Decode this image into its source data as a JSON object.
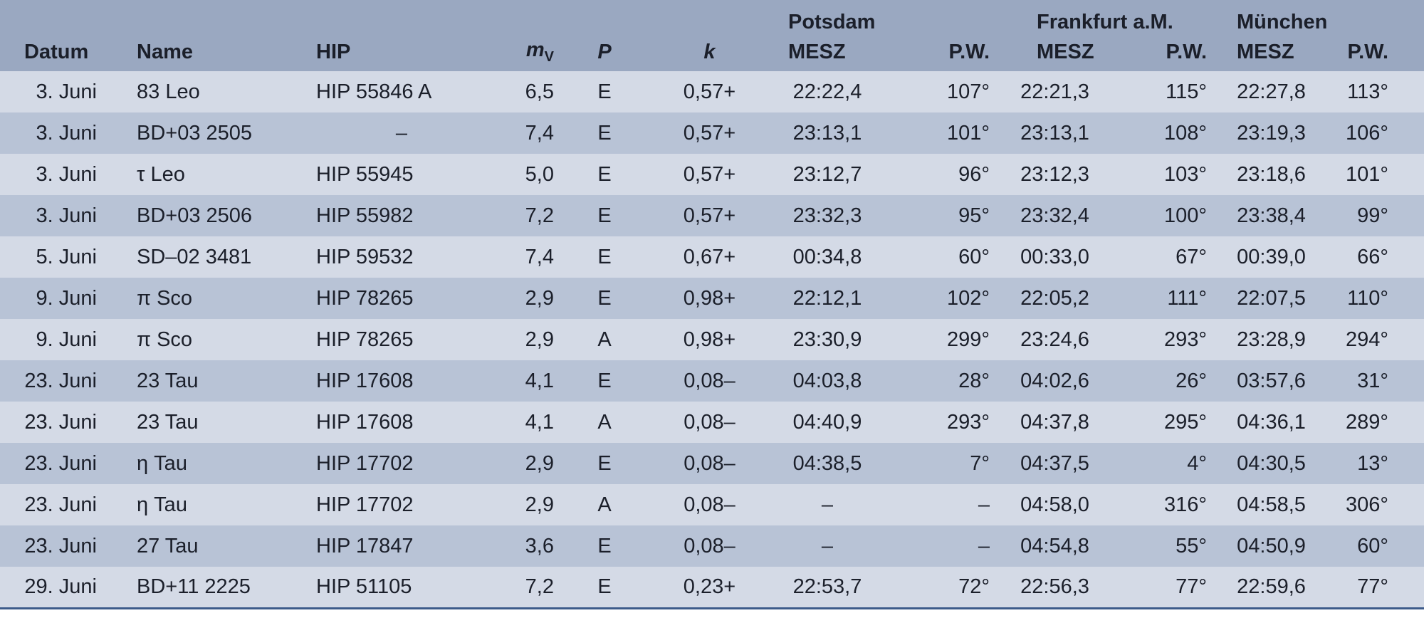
{
  "columns": {
    "datum": "Datum",
    "name": "Name",
    "hip": "HIP",
    "mv_main": "m",
    "mv_sub": "V",
    "p": "P",
    "k": "k",
    "mesz": "MESZ",
    "pw": "P.W."
  },
  "cities": [
    "Potsdam",
    "Frankfurt a.M.",
    "München"
  ],
  "rows": [
    [
      "3. Juni",
      "83 Leo",
      "HIP 55846 A",
      "6,5",
      "E",
      "0,57+",
      "22:22,4",
      "107°",
      "22:21,3",
      "115°",
      "22:27,8",
      "113°"
    ],
    [
      "3. Juni",
      "BD+03 2505",
      "–",
      "7,4",
      "E",
      "0,57+",
      "23:13,1",
      "101°",
      "23:13,1",
      "108°",
      "23:19,3",
      "106°"
    ],
    [
      "3. Juni",
      "τ Leo",
      "HIP 55945",
      "5,0",
      "E",
      "0,57+",
      "23:12,7",
      "96°",
      "23:12,3",
      "103°",
      "23:18,6",
      "101°"
    ],
    [
      "3. Juni",
      "BD+03 2506",
      "HIP 55982",
      "7,2",
      "E",
      "0,57+",
      "23:32,3",
      "95°",
      "23:32,4",
      "100°",
      "23:38,4",
      "99°"
    ],
    [
      "5. Juni",
      "SD–02 3481",
      "HIP 59532",
      "7,4",
      "E",
      "0,67+",
      "00:34,8",
      "60°",
      "00:33,0",
      "67°",
      "00:39,0",
      "66°"
    ],
    [
      "9. Juni",
      "π Sco",
      "HIP 78265",
      "2,9",
      "E",
      "0,98+",
      "22:12,1",
      "102°",
      "22:05,2",
      "111°",
      "22:07,5",
      "110°"
    ],
    [
      "9. Juni",
      "π Sco",
      "HIP 78265",
      "2,9",
      "A",
      "0,98+",
      "23:30,9",
      "299°",
      "23:24,6",
      "293°",
      "23:28,9",
      "294°"
    ],
    [
      "23. Juni",
      "23 Tau",
      "HIP 17608",
      "4,1",
      "E",
      "0,08–",
      "04:03,8",
      "28°",
      "04:02,6",
      "26°",
      "03:57,6",
      "31°"
    ],
    [
      "23. Juni",
      "23 Tau",
      "HIP 17608",
      "4,1",
      "A",
      "0,08–",
      "04:40,9",
      "293°",
      "04:37,8",
      "295°",
      "04:36,1",
      "289°"
    ],
    [
      "23. Juni",
      "η Tau",
      "HIP 17702",
      "2,9",
      "E",
      "0,08–",
      "04:38,5",
      "7°",
      "04:37,5",
      "4°",
      "04:30,5",
      "13°"
    ],
    [
      "23. Juni",
      "η Tau",
      "HIP 17702",
      "2,9",
      "A",
      "0,08–",
      "–",
      "–",
      "04:58,0",
      "316°",
      "04:58,5",
      "306°"
    ],
    [
      "23. Juni",
      "27 Tau",
      "HIP 17847",
      "3,6",
      "E",
      "0,08–",
      "–",
      "–",
      "04:54,8",
      "55°",
      "04:50,9",
      "60°"
    ],
    [
      "29. Juni",
      "BD+11 2225",
      "HIP 51105",
      "7,2",
      "E",
      "0,23+",
      "22:53,7",
      "72°",
      "22:56,3",
      "77°",
      "22:59,6",
      "77°"
    ]
  ]
}
